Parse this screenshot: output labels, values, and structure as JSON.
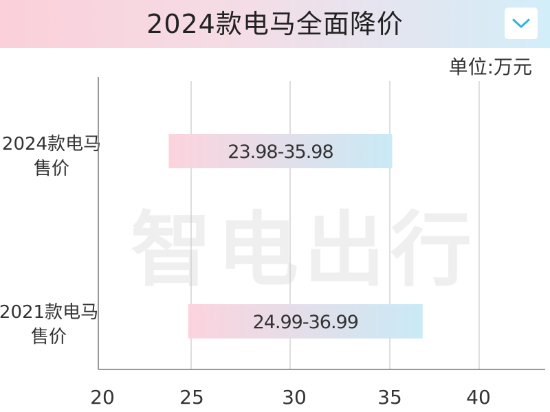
{
  "header": {
    "title": "2024款电马全面降价",
    "toggle_icon": "chevron-down-icon"
  },
  "unit_label": "单位:万元",
  "watermark": "智电出行",
  "colors": {
    "bar_start": "#fcd3dd",
    "bar_end": "#c9eaf6",
    "grid": "#c8c8c8",
    "axis": "#777777",
    "accent": "#2bb3e0"
  },
  "chart_data": {
    "type": "bar",
    "orientation": "horizontal-range",
    "categories": [
      {
        "line1": "2024款电马",
        "line2": "售价"
      },
      {
        "line1": "2021款电马",
        "line2": "售价"
      }
    ],
    "series": [
      {
        "low": 23.98,
        "high": 35.98,
        "label": "23.98-35.98"
      },
      {
        "low": 24.99,
        "high": 36.99,
        "label": "24.99-36.99"
      }
    ],
    "x_ticks": [
      20,
      25,
      30,
      35,
      40
    ],
    "xlim": [
      20,
      42
    ],
    "grid": true
  }
}
